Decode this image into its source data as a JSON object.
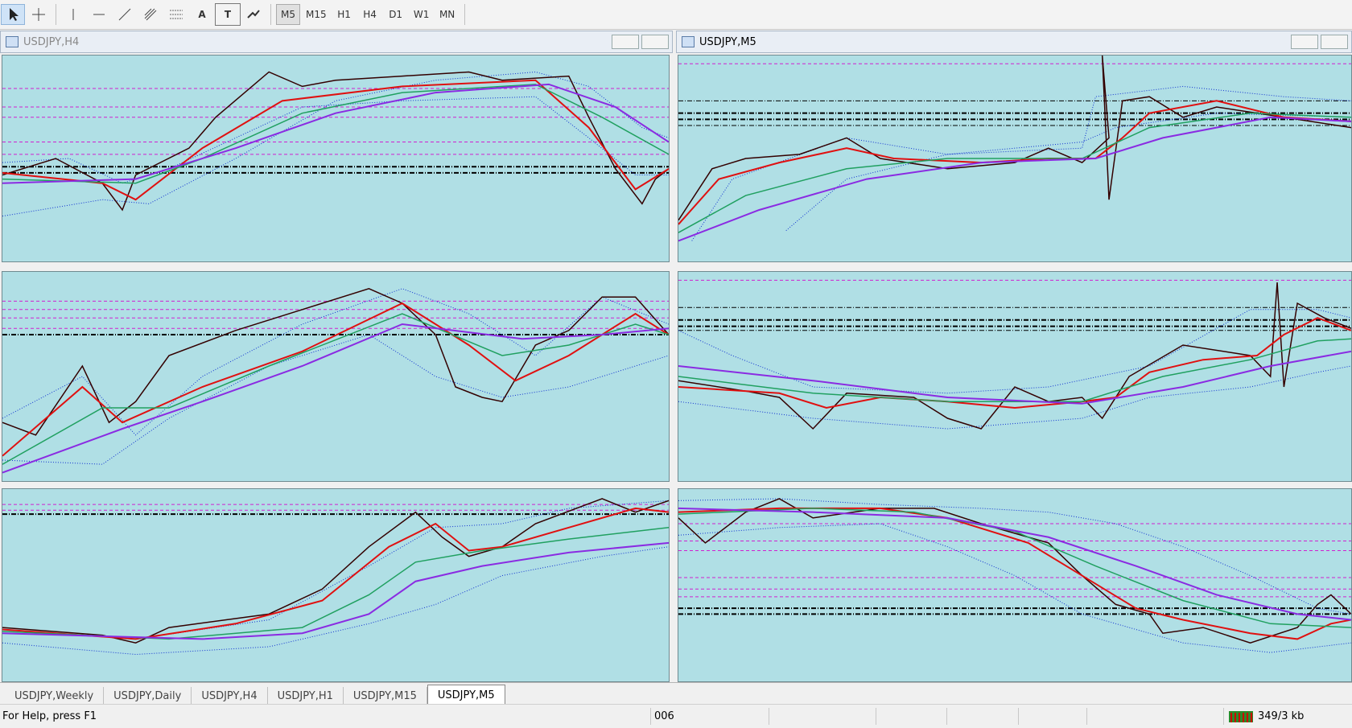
{
  "toolbar": {
    "drawing_tools": [
      "A",
      "T"
    ],
    "timeframes": [
      "M5",
      "M15",
      "H1",
      "H4",
      "D1",
      "W1",
      "MN"
    ]
  },
  "windows": [
    {
      "title": "USDJPY,H4"
    },
    {
      "title": "USDJPY,M5"
    }
  ],
  "tabs": [
    "USDJPY,Weekly",
    "USDJPY,Daily",
    "USDJPY,H4",
    "USDJPY,H1",
    "USDJPY,M15",
    "USDJPY,M5"
  ],
  "active_tab": 5,
  "status_bar": {
    "help": "For Help, press F1",
    "field": "006",
    "memory": "349/3 kb"
  }
}
